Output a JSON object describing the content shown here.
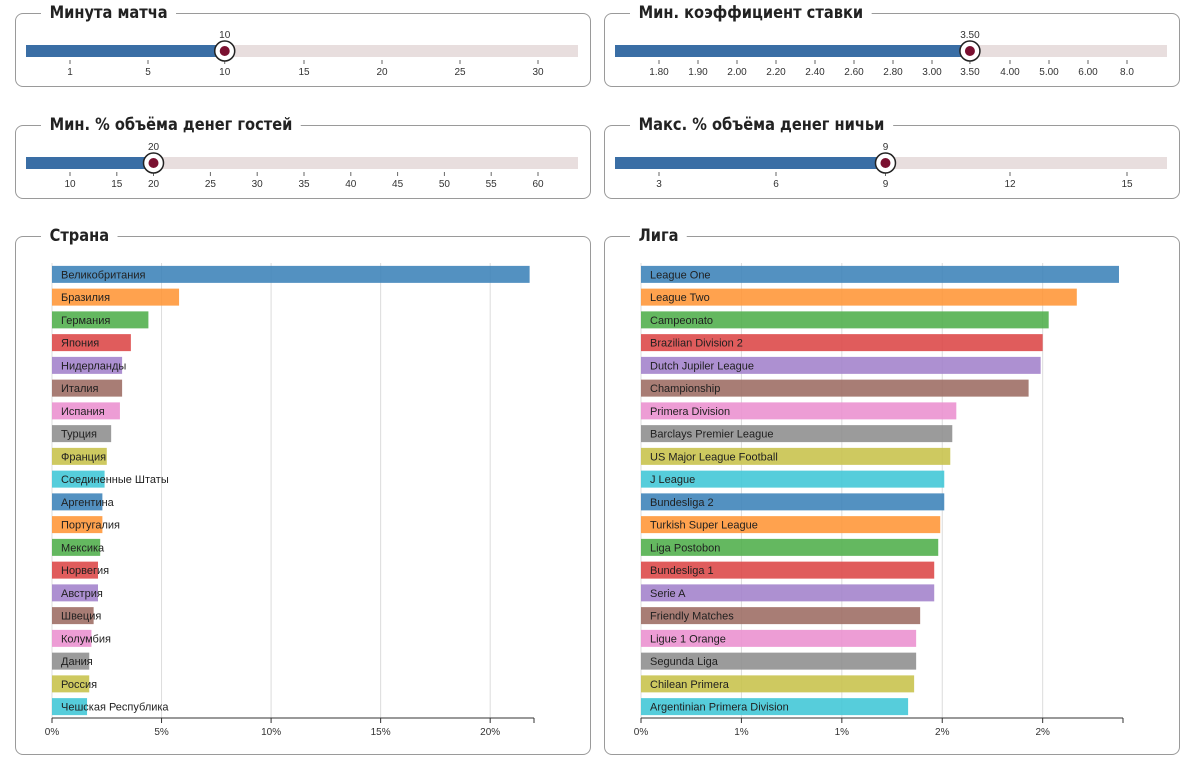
{
  "sliders": [
    {
      "id": "minute",
      "title": "Минута матча",
      "value_label": "10",
      "ticks": [
        "1",
        "5",
        "10",
        "15",
        "20",
        "25",
        "30"
      ],
      "value_index": 2,
      "fill_fraction": 0.36
    },
    {
      "id": "min-odds",
      "title": "Мин. коэффициент ставки",
      "value_label": "3.50",
      "ticks": [
        "1.80",
        "1.90",
        "2.00",
        "2.20",
        "2.40",
        "2.60",
        "2.80",
        "3.00",
        "3.50",
        "4.00",
        "5.00",
        "6.00",
        "8.0"
      ],
      "value_index": 8,
      "fill_fraction": 0.643
    },
    {
      "id": "min-away-money",
      "title": "Мин. % объёма денег гостей",
      "value_label": "20",
      "ticks": [
        "10",
        "15",
        "20",
        "25",
        "30",
        "35",
        "40",
        "45",
        "50",
        "55",
        "60"
      ],
      "value_index": 2,
      "fill_fraction": 0.231
    },
    {
      "id": "max-draw-money",
      "title": "Макс. % объёма денег ничьи",
      "value_label": "9",
      "ticks": [
        "3",
        "6",
        "9",
        "12",
        "15"
      ],
      "value_index": 2,
      "fill_fraction": 0.49
    }
  ],
  "colors": {
    "track_fill": "#3a6ea5",
    "track_empty": "#e8dede",
    "handle": "#7a1030"
  },
  "palette": [
    "#3b82b8",
    "#ff9535",
    "#4fae4a",
    "#dc4545",
    "#a281cb",
    "#9c6b62",
    "#ea8fcf",
    "#8d8d8d",
    "#c7c24a",
    "#3fc6d6"
  ],
  "country_panel": {
    "title": "Страна",
    "chart_data": {
      "type": "bar",
      "orientation": "horizontal",
      "categories": [
        "Великобритания",
        "Бразилия",
        "Германия",
        "Япония",
        "Нидерланды",
        "Италия",
        "Испания",
        "Турция",
        "Франция",
        "Соединенные Штаты",
        "Аргентина",
        "Португалия",
        "Мексика",
        "Норвегия",
        "Австрия",
        "Швеция",
        "Колумбия",
        "Дания",
        "Россия",
        "Чешская Республика"
      ],
      "values": [
        21.8,
        5.8,
        4.4,
        3.6,
        3.2,
        3.2,
        3.1,
        2.7,
        2.5,
        2.4,
        2.3,
        2.3,
        2.2,
        2.1,
        2.1,
        1.9,
        1.8,
        1.7,
        1.7,
        1.6
      ],
      "xlim": [
        0,
        22
      ],
      "x_ticks": [
        0,
        5,
        10,
        15,
        20
      ],
      "x_tick_labels": [
        "0%",
        "5%",
        "10%",
        "15%",
        "20%"
      ],
      "grid": true
    }
  },
  "league_panel": {
    "title": "Лига",
    "chart_data": {
      "type": "bar",
      "orientation": "horizontal",
      "categories": [
        "League One",
        "League Two",
        "Campeonato",
        "Brazilian Division 2",
        "Dutch Jupiler League",
        "Championship",
        "Primera Division",
        "Barclays Premier League",
        "US Major League Football",
        "J League",
        "Bundesliga 2",
        "Turkish Super League",
        "Liga Postobon",
        "Bundesliga 1",
        "Serie A",
        "Friendly Matches",
        "Ligue 1 Orange",
        "Segunda Liga",
        "Chilean Primera",
        "Argentinian Primera Division"
      ],
      "values": [
        2.38,
        2.17,
        2.03,
        2.0,
        1.99,
        1.93,
        1.57,
        1.55,
        1.54,
        1.51,
        1.51,
        1.49,
        1.48,
        1.46,
        1.46,
        1.39,
        1.37,
        1.37,
        1.36,
        1.33
      ],
      "xlim": [
        0,
        2.4
      ],
      "x_ticks": [
        0,
        0.5,
        1.0,
        1.5,
        2.0
      ],
      "x_tick_labels": [
        "0%",
        "1%",
        "1%",
        "2%",
        "2%"
      ],
      "grid": true
    }
  }
}
